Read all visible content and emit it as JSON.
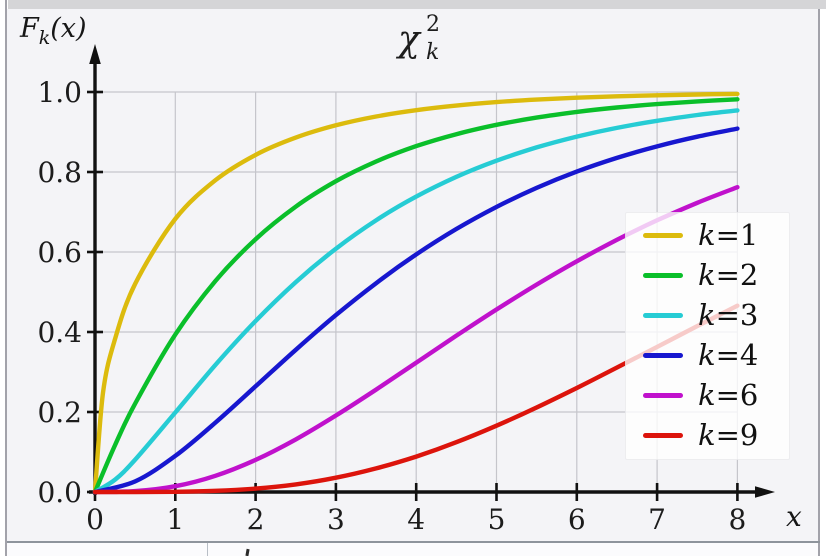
{
  "page": {
    "context": "statistics infobox cell containing the chi-squared CDF figure",
    "colors": {
      "plot_background": "#f4f4f7",
      "top_band": "#d5d5d7",
      "cell_border": "#a2a2aa",
      "bottom_border": "#8e949c",
      "grid": "#c5c5cb",
      "axis": "#111111",
      "legend_background": "rgba(255,255,255,0.78)"
    }
  },
  "chart_data": {
    "type": "line",
    "title": "χ²k (chi-squared, subscript k)",
    "title_parts": {
      "base": "χ",
      "sup": "2",
      "sub": "k"
    },
    "xlabel": "x",
    "ylabel": "Fk(x)",
    "ylabel_parts": {
      "base": "F",
      "sub": "k",
      "rest": "(x)"
    },
    "xlim": [
      0,
      8.4
    ],
    "ylim": [
      0,
      1.08
    ],
    "x_ticks": [
      0,
      1,
      2,
      3,
      4,
      5,
      6,
      7,
      8
    ],
    "y_ticks": [
      0.0,
      0.2,
      0.4,
      0.6,
      0.8,
      1.0
    ],
    "grid": true,
    "legend_position": "right",
    "series": [
      {
        "name": "k=1",
        "color": "#dcbb0d",
        "x": [
          0,
          0.1,
          0.25,
          0.5,
          1,
          1.5,
          2,
          2.5,
          3,
          3.5,
          4,
          4.5,
          5,
          5.5,
          6,
          6.5,
          7,
          7.5,
          8
        ],
        "y": [
          0,
          0.2482,
          0.3829,
          0.5205,
          0.6827,
          0.7794,
          0.8427,
          0.8861,
          0.9167,
          0.9387,
          0.9545,
          0.9661,
          0.9747,
          0.981,
          0.9857,
          0.9892,
          0.9918,
          0.9938,
          0.9953
        ]
      },
      {
        "name": "k=2",
        "color": "#0abf2a",
        "x": [
          0,
          0.25,
          0.5,
          1,
          1.5,
          2,
          2.5,
          3,
          3.5,
          4,
          4.5,
          5,
          5.5,
          6,
          6.5,
          7,
          7.5,
          8
        ],
        "y": [
          0,
          0.1175,
          0.2212,
          0.3935,
          0.5276,
          0.6321,
          0.7135,
          0.7769,
          0.8262,
          0.8647,
          0.8946,
          0.9179,
          0.9361,
          0.9502,
          0.9612,
          0.9698,
          0.9765,
          0.9817
        ]
      },
      {
        "name": "k=3",
        "color": "#26ccd4",
        "x": [
          0,
          0.25,
          0.5,
          1,
          1.5,
          2,
          2.5,
          3,
          3.5,
          4,
          4.5,
          5,
          5.5,
          6,
          6.5,
          7,
          7.5,
          8
        ],
        "y": [
          0,
          0.0309,
          0.0811,
          0.1988,
          0.3178,
          0.4276,
          0.5247,
          0.6083,
          0.6793,
          0.7385,
          0.7877,
          0.8282,
          0.8614,
          0.8884,
          0.9103,
          0.9281,
          0.9424,
          0.954
        ]
      },
      {
        "name": "k=4",
        "color": "#1717cf",
        "x": [
          0,
          0.5,
          1,
          1.5,
          2,
          2.5,
          3,
          3.5,
          4,
          4.5,
          5,
          5.5,
          6,
          6.5,
          7,
          7.5,
          8
        ],
        "y": [
          0,
          0.0265,
          0.0902,
          0.1734,
          0.2642,
          0.3554,
          0.4422,
          0.5221,
          0.594,
          0.6575,
          0.7127,
          0.7603,
          0.8009,
          0.8352,
          0.8641,
          0.8883,
          0.9084
        ]
      },
      {
        "name": "k=6",
        "color": "#c011cc",
        "x": [
          0,
          0.5,
          1,
          1.5,
          2,
          2.5,
          3,
          3.5,
          4,
          4.5,
          5,
          5.5,
          6,
          6.5,
          7,
          7.5,
          8
        ],
        "y": [
          0,
          0.0022,
          0.0144,
          0.0405,
          0.0803,
          0.1315,
          0.1912,
          0.2561,
          0.3233,
          0.3907,
          0.4562,
          0.5185,
          0.5768,
          0.6304,
          0.6792,
          0.7229,
          0.7619
        ]
      },
      {
        "name": "k=9",
        "color": "#dc140c",
        "x": [
          0,
          0.5,
          1,
          1.5,
          2,
          2.5,
          3,
          3.5,
          4,
          4.5,
          5,
          5.5,
          6,
          6.5,
          7,
          7.5,
          8
        ],
        "y": [
          0,
          0.0001,
          0.0006,
          0.0029,
          0.0086,
          0.0191,
          0.0357,
          0.059,
          0.0886,
          0.1244,
          0.1657,
          0.2113,
          0.2601,
          0.311,
          0.3628,
          0.4147,
          0.4658
        ]
      }
    ]
  }
}
